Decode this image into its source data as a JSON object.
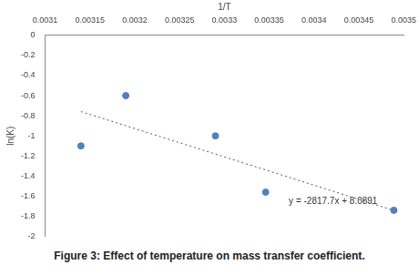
{
  "chart_data": {
    "type": "scatter",
    "caption": "Figure 3: Effect of temperature on mass transfer coefficient.",
    "x_label": "1/T",
    "y_label": "ln(K)",
    "x": [
      0.00314,
      0.00319,
      0.00329,
      0.003346,
      0.003489
    ],
    "values": [
      -1.1,
      -0.6,
      -1.0,
      -1.56,
      -1.74
    ],
    "color": "#4f81bd",
    "marker": "circle",
    "trendline": {
      "slope": -2817.7,
      "intercept": 8.0891,
      "label": "y = -2817.7x + 8.0891",
      "line_style": "dotted"
    },
    "xlim": [
      0.0031,
      0.0035
    ],
    "xticks": [
      0.0031,
      0.00315,
      0.0032,
      0.00325,
      0.0033,
      0.00335,
      0.0034,
      0.00345,
      0.0035
    ],
    "ylim": [
      -2,
      0
    ],
    "yticks": [
      0,
      -0.2,
      -0.4,
      -0.6,
      -0.8,
      -1,
      -1.2,
      -1.4,
      -1.6,
      -1.8,
      -2
    ],
    "grid": false
  }
}
